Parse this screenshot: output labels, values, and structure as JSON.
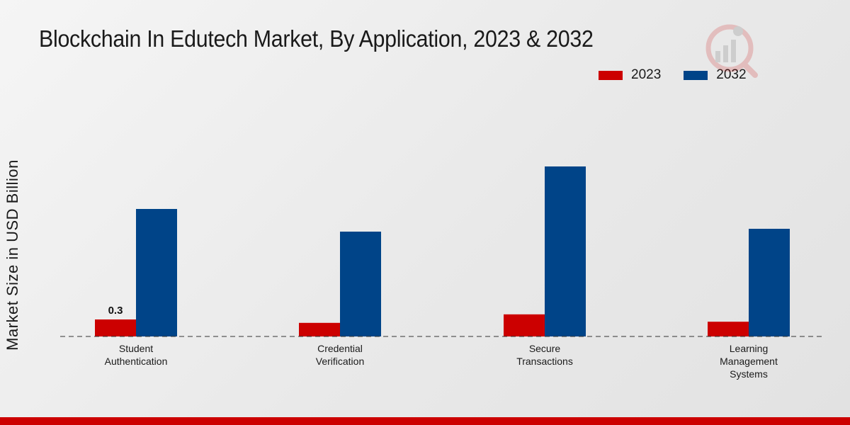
{
  "chart_data": {
    "type": "bar",
    "title": "Blockchain In Edutech Market, By Application, 2023 & 2032",
    "xlabel": "",
    "ylabel": "Market Size in USD Billion",
    "categories": [
      [
        "Student",
        "Authentication"
      ],
      [
        "Credential",
        "Verification"
      ],
      [
        "Secure",
        "Transactions"
      ],
      [
        "Learning",
        "Management",
        "Systems"
      ]
    ],
    "series": [
      {
        "name": "2023",
        "color": "#cc0000",
        "values": [
          0.3,
          0.24,
          0.39,
          0.26
        ]
      },
      {
        "name": "2032",
        "color": "#004488",
        "values": [
          2.25,
          1.85,
          3.0,
          1.9
        ]
      }
    ],
    "data_labels": [
      {
        "series": 0,
        "index": 0,
        "text": "0.3"
      }
    ],
    "ylim": [
      0,
      4.5
    ],
    "grid": false,
    "legend_position": "top-right"
  }
}
